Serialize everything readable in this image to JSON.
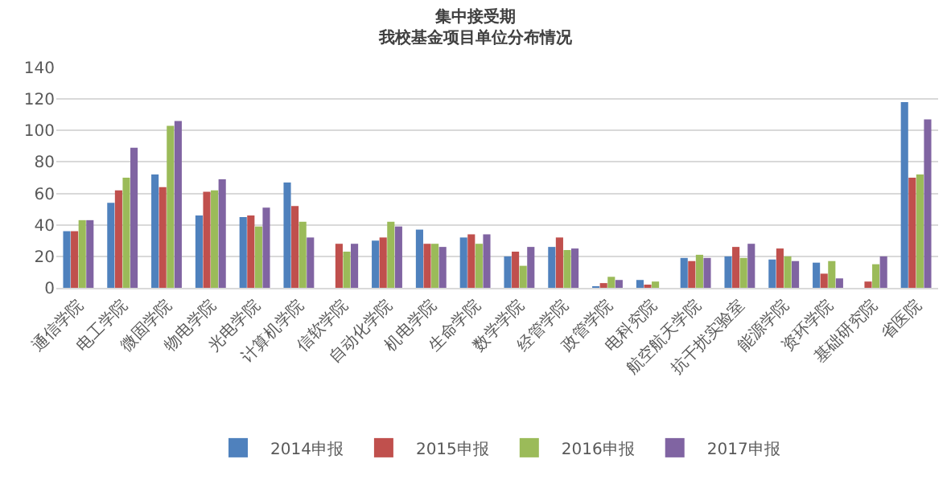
{
  "chart_data": {
    "type": "bar",
    "title": "集中接受期",
    "subtitle": "我校基金项目单位分布情况",
    "categories": [
      "通信学院",
      "电工学院",
      "微固学院",
      "物电学院",
      "光电学院",
      "计算机学院",
      "信软学院",
      "自动化学院",
      "机电学院",
      "生命学院",
      "数学学院",
      "经管学院",
      "政管学院",
      "电科究院",
      "航空航天学院",
      "抗干扰实验室",
      "能源学院",
      "资环学院",
      "基础研究院",
      "省医院"
    ],
    "series": [
      {
        "name": "2014申报",
        "color": "#4f81bd",
        "values": [
          36,
          54,
          72,
          46,
          45,
          67,
          null,
          30,
          37,
          32,
          20,
          26,
          1,
          5,
          19,
          20,
          18,
          16,
          null,
          118
        ]
      },
      {
        "name": "2015申报",
        "color": "#c0504d",
        "values": [
          36,
          62,
          64,
          61,
          46,
          52,
          28,
          32,
          28,
          34,
          23,
          32,
          3,
          2,
          17,
          26,
          25,
          9,
          4,
          70
        ]
      },
      {
        "name": "2016申报",
        "color": "#9bbb59",
        "values": [
          43,
          70,
          103,
          62,
          39,
          42,
          23,
          42,
          28,
          28,
          14,
          24,
          7,
          4,
          21,
          19,
          20,
          17,
          15,
          72
        ]
      },
      {
        "name": "2017申报",
        "color": "#8064a2",
        "values": [
          43,
          89,
          106,
          69,
          51,
          32,
          28,
          39,
          26,
          34,
          26,
          25,
          5,
          null,
          19,
          28,
          17,
          6,
          20,
          107
        ]
      }
    ],
    "ylim": [
      0,
      140
    ],
    "yticks": [
      0,
      20,
      40,
      60,
      80,
      100,
      120,
      140
    ],
    "grid": "y",
    "legend": "bottom"
  }
}
